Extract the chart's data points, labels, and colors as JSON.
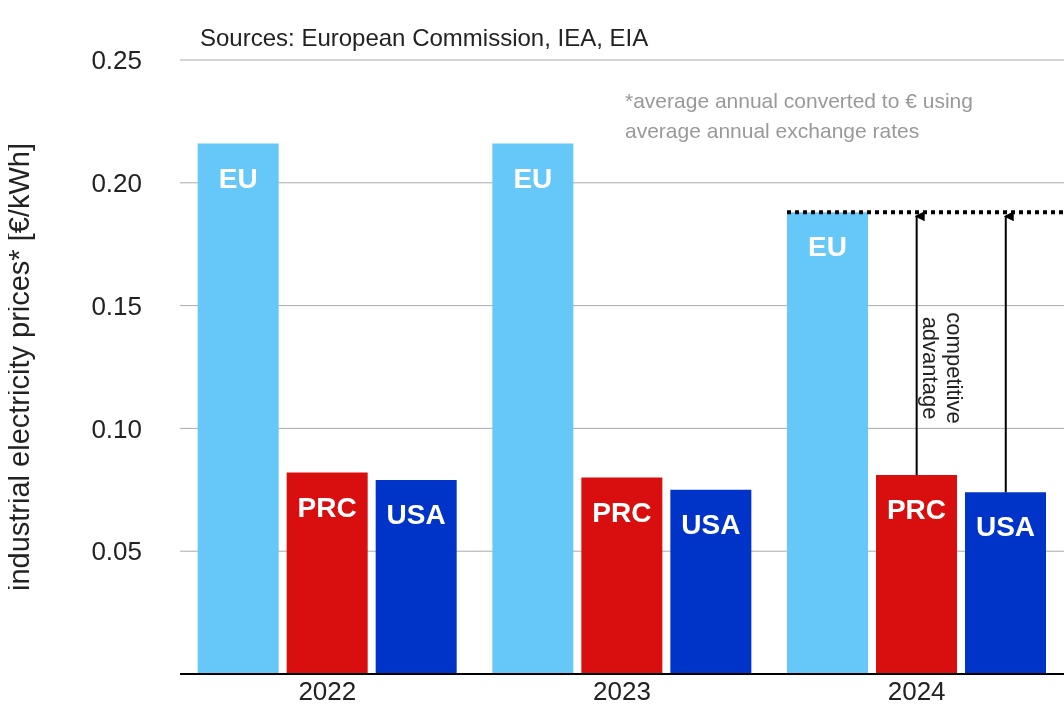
{
  "chart_data": {
    "type": "bar",
    "ylabel": "industrial electricity prices* [€/kWh]",
    "categories": [
      "2022",
      "2023",
      "2024"
    ],
    "series": [
      {
        "name": "EU",
        "color": "#66c8f8",
        "values": [
          0.216,
          0.216,
          0.188
        ]
      },
      {
        "name": "PRC",
        "color": "#d90f0f",
        "values": [
          0.082,
          0.08,
          0.081
        ]
      },
      {
        "name": "USA",
        "color": "#0033c8",
        "values": [
          0.079,
          0.075,
          0.074
        ]
      }
    ],
    "ylim": [
      0,
      0.25
    ],
    "yticks": [
      {
        "value": 0,
        "label": null
      },
      0.05,
      {
        "value": 0.1,
        "label": "0.10"
      },
      0.15,
      {
        "value": 0.2,
        "label": "0.20"
      },
      0.25
    ],
    "grid": "y",
    "ref_lines": [
      {
        "axis": "y",
        "value": 0.188,
        "color": "#000000",
        "line_style": "dotted"
      }
    ],
    "annotations": [
      "Sources: European Commission, IEA, EIA",
      "*average annual converted to € using average annual exchange rates",
      "competitive advantage"
    ]
  }
}
